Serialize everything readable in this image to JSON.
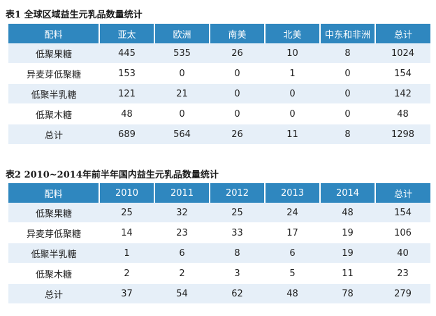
{
  "table1": {
    "caption": "表1  全球区域益生元乳品数量统计",
    "headers": [
      "配料",
      "亚太",
      "欧洲",
      "南美",
      "北美",
      "中东和非洲",
      "总计"
    ],
    "rows": [
      [
        "低聚果糖",
        "445",
        "535",
        "26",
        "10",
        "8",
        "1024"
      ],
      [
        "异麦芽低聚糖",
        "153",
        "0",
        "0",
        "1",
        "0",
        "154"
      ],
      [
        "低聚半乳糖",
        "121",
        "21",
        "0",
        "0",
        "0",
        "142"
      ],
      [
        "低聚木糖",
        "48",
        "0",
        "0",
        "0",
        "0",
        "48"
      ],
      [
        "总计",
        "689",
        "564",
        "26",
        "11",
        "8",
        "1298"
      ]
    ]
  },
  "table2": {
    "caption": "表2  2010~2014年前半年国内益生元乳品数量统计",
    "headers": [
      "配料",
      "2010",
      "2011",
      "2012",
      "2013",
      "2014",
      "总计"
    ],
    "rows": [
      [
        "低聚果糖",
        "25",
        "32",
        "25",
        "24",
        "48",
        "154"
      ],
      [
        "异麦芽低聚糖",
        "14",
        "23",
        "33",
        "17",
        "19",
        "106"
      ],
      [
        "低聚半乳糖",
        "1",
        "6",
        "8",
        "6",
        "19",
        "40"
      ],
      [
        "低聚木糖",
        "2",
        "2",
        "3",
        "5",
        "11",
        "23"
      ],
      [
        "总计",
        "37",
        "54",
        "62",
        "48",
        "78",
        "279"
      ]
    ]
  },
  "colors": {
    "header_bg": "#2f87bf",
    "header_text": "#ffffff",
    "stripe_bg": "#e6eff8",
    "row_bg": "#ffffff"
  }
}
